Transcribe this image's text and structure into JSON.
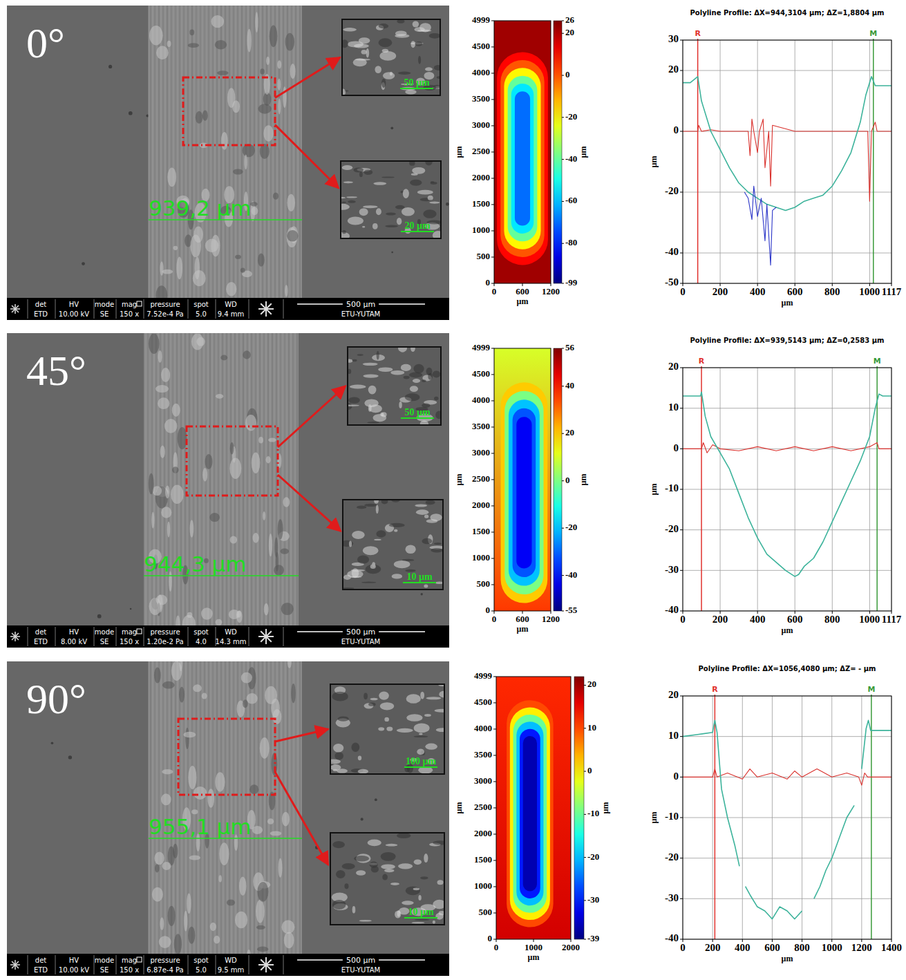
{
  "sem_images": [
    {
      "label": "0°",
      "measure": "939,2 µm",
      "insets": [
        "50 µm",
        "20 µm"
      ],
      "info": {
        "headers": [
          "det",
          "HV",
          "mode",
          "mag",
          "pressure",
          "spot",
          "WD"
        ],
        "values": [
          "ETD",
          "10.00 kV",
          "SE",
          "150 x",
          "7.52e-4 Pa",
          "5.0",
          "9.4 mm"
        ]
      },
      "scale_bar": "500 µm",
      "lab": "ETU-YUTAM"
    },
    {
      "label": "45°",
      "measure": "944,3 µm",
      "insets": [
        "50 µm",
        "10 µm"
      ],
      "info": {
        "headers": [
          "det",
          "HV",
          "mode",
          "mag",
          "pressure",
          "spot",
          "WD"
        ],
        "values": [
          "ETD",
          "8.00 kV",
          "SE",
          "150 x",
          "1.20e-2 Pa",
          "4.0",
          "14.3 mm"
        ]
      },
      "scale_bar": "500 µm",
      "lab": "ETU-YUTAM"
    },
    {
      "label": "90°",
      "measure": "955,1 µm",
      "insets": [
        "100 µm",
        "10 µm"
      ],
      "info": {
        "headers": [
          "det",
          "HV",
          "mode",
          "mag",
          "pressure",
          "spot",
          "WD"
        ],
        "values": [
          "ETD",
          "10.00 kV",
          "SE",
          "150 x",
          "6.87e-4 Pa",
          "5.0",
          "9.5 mm"
        ]
      },
      "scale_bar": "500 µm",
      "lab": "ETU-YUTAM"
    }
  ],
  "chart_data": [
    {
      "type": "heatmap",
      "xlabel": "µm",
      "ylabel": "µm",
      "colorbar_label": "µm",
      "xlim": [
        0,
        1200
      ],
      "xticks": [
        0,
        600,
        1200
      ],
      "ylim": [
        0,
        4999
      ],
      "yticks": [
        0,
        500,
        1000,
        1500,
        2000,
        2500,
        3000,
        3500,
        4000,
        4500,
        4999
      ],
      "color_range": [
        -99,
        26
      ],
      "color_ticks": [
        26,
        20,
        0,
        -20,
        -40,
        -60,
        -80,
        -99
      ],
      "surface": [
        22,
        22
      ],
      "scar": {
        "x": [
          60,
          1140
        ],
        "y": [
          350,
          4400
        ],
        "levels": [
          10,
          0,
          -20,
          -40,
          -55,
          -70
        ]
      }
    },
    {
      "type": "line",
      "title": "Polyline Profile: ΔX=944,3104 µm; ΔZ=1,8804 µm",
      "xlabel": "µm",
      "ylabel": "µm",
      "xlim": [
        0,
        1117
      ],
      "xticks": [
        0,
        200,
        400,
        600,
        800,
        1000,
        1117
      ],
      "ylim": [
        -50,
        30
      ],
      "yticks": [
        -50,
        -40,
        -20,
        0,
        20,
        30
      ],
      "grid": true,
      "cursors": [
        {
          "label": "R",
          "x": 80,
          "color": "#e0302c"
        },
        {
          "label": "M",
          "x": 1020,
          "color": "#3a9a3a"
        }
      ],
      "series": [
        {
          "color": "#3cb39b",
          "x": [
            0,
            40,
            80,
            100,
            150,
            200,
            250,
            300,
            350,
            400,
            450,
            500,
            550,
            600,
            650,
            700,
            750,
            800,
            850,
            900,
            950,
            980,
            1010,
            1030,
            1060,
            1117
          ],
          "values": [
            16,
            16,
            18,
            10,
            0,
            -6,
            -12,
            -17,
            -20,
            -22,
            -24,
            -25,
            -26,
            -25,
            -23,
            -22,
            -21,
            -18,
            -13,
            -7,
            3,
            12,
            18,
            15,
            15,
            15
          ]
        },
        {
          "color": "#2b35c8",
          "x": [
            330,
            350,
            370,
            380,
            400,
            420,
            440,
            450,
            470,
            480,
            500
          ],
          "values": [
            -20,
            -22,
            -29,
            -18,
            -28,
            -22,
            -36,
            -24,
            -44,
            -26,
            -25
          ]
        },
        {
          "color": "#d9302c",
          "x": [
            0,
            80,
            85,
            100,
            150,
            200,
            300,
            350,
            360,
            370,
            380,
            400,
            410,
            430,
            440,
            460,
            470,
            480,
            600,
            800,
            990,
            1000,
            1010,
            1030,
            1040,
            1117
          ],
          "values": [
            0,
            0,
            2,
            0,
            0.5,
            0,
            0,
            0,
            -8,
            4,
            0,
            -7,
            0,
            4,
            -12,
            0,
            -18,
            2,
            0,
            0,
            0,
            -23,
            0,
            3,
            0,
            0
          ]
        }
      ]
    },
    {
      "type": "heatmap",
      "xlabel": "µm",
      "ylabel": "µm",
      "colorbar_label": "µm",
      "xlim": [
        0,
        1200
      ],
      "xticks": [
        0,
        600,
        1200
      ],
      "ylim": [
        0,
        4999
      ],
      "yticks": [
        0,
        500,
        1000,
        1500,
        2000,
        2500,
        3000,
        3500,
        4000,
        4500,
        4999
      ],
      "color_range": [
        -55,
        56
      ],
      "color_ticks": [
        56,
        40,
        20,
        0,
        -20,
        -40,
        -55
      ],
      "surface": [
        10,
        36
      ],
      "scar": {
        "x": [
          140,
          1130
        ],
        "y": [
          150,
          4350
        ],
        "levels": [
          20,
          0,
          -20,
          -32,
          -42
        ]
      }
    },
    {
      "type": "line",
      "title": "Polyline Profile: ΔX=939,5143 µm; ΔZ=0,2583 µm",
      "xlabel": "µm",
      "ylabel": "µm",
      "xlim": [
        0,
        1117
      ],
      "xticks": [
        0,
        200,
        400,
        600,
        800,
        1000,
        1117
      ],
      "ylim": [
        -40,
        20
      ],
      "yticks": [
        -40,
        -30,
        -20,
        -10,
        0,
        10,
        20
      ],
      "grid": true,
      "cursors": [
        {
          "label": "R",
          "x": 100,
          "color": "#e0302c"
        },
        {
          "label": "M",
          "x": 1040,
          "color": "#3a9a3a"
        }
      ],
      "series": [
        {
          "color": "#3cb39b",
          "x": [
            0,
            50,
            95,
            100,
            120,
            150,
            200,
            250,
            300,
            350,
            400,
            450,
            500,
            550,
            600,
            620,
            650,
            700,
            750,
            800,
            850,
            900,
            950,
            1000,
            1030,
            1050,
            1070,
            1117
          ],
          "values": [
            13,
            13,
            13,
            14,
            8,
            3,
            -1,
            -5,
            -11,
            -17,
            -22,
            -26,
            -28,
            -30,
            -31.5,
            -31,
            -29,
            -27,
            -23,
            -18,
            -13,
            -8,
            -3,
            3,
            10,
            13.5,
            13,
            13
          ]
        },
        {
          "color": "#d9302c",
          "x": [
            0,
            100,
            110,
            130,
            160,
            200,
            300,
            400,
            500,
            600,
            700,
            800,
            900,
            1000,
            1040,
            1050,
            1117
          ],
          "values": [
            0,
            0,
            1.5,
            -1,
            1,
            0,
            -0.5,
            0.5,
            -0.5,
            0.5,
            -0.5,
            0.5,
            -0.5,
            0.5,
            1.5,
            0,
            0
          ]
        }
      ]
    },
    {
      "type": "heatmap",
      "xlabel": "µm",
      "ylabel": "µm",
      "colorbar_label": "µm",
      "xlim": [
        0,
        2000
      ],
      "xticks": [
        0,
        1000,
        2000
      ],
      "ylim": [
        0,
        4999
      ],
      "yticks": [
        0,
        500,
        1000,
        1500,
        2000,
        2500,
        3000,
        3500,
        4000,
        4500,
        4999
      ],
      "color_range": [
        -39,
        22
      ],
      "color_ticks": [
        20,
        10,
        0,
        -10,
        -20,
        -30,
        -39
      ],
      "surface": [
        12,
        17
      ],
      "scar": {
        "x": [
          280,
          1530
        ],
        "y": [
          230,
          4550
        ],
        "levels": [
          10,
          0,
          -10,
          -20,
          -30,
          -36
        ]
      }
    },
    {
      "type": "line",
      "title": "Polyline Profile: ΔX=1056,4080 µm; ΔZ= - µm",
      "xlabel": "µm",
      "ylabel": "µm",
      "xlim": [
        0,
        1400
      ],
      "xticks": [
        0,
        200,
        400,
        600,
        800,
        1000,
        1200,
        1400
      ],
      "ylim": [
        -40,
        20
      ],
      "yticks": [
        -40,
        -30,
        -20,
        -10,
        0,
        10,
        20
      ],
      "grid": true,
      "cursors": [
        {
          "label": "R",
          "x": 215,
          "color": "#e0302c"
        },
        {
          "label": "M",
          "x": 1265,
          "color": "#3a9a3a"
        }
      ],
      "series": [
        {
          "color": "#3cb39b",
          "x": [
            0,
            100,
            200,
            215,
            230,
            260,
            300,
            350,
            380,
            400,
            420,
            450,
            500,
            550,
            600,
            650,
            700,
            750,
            800,
            830,
            880,
            920,
            960,
            1000,
            1050,
            1100,
            1150,
            1170,
            1200,
            1230,
            1245,
            1260,
            1300,
            1400
          ],
          "values": [
            10,
            10.5,
            11,
            14,
            11,
            -3,
            -10,
            -17,
            -22,
            null,
            -27,
            -29,
            -32,
            -33,
            -35,
            -32,
            -33,
            -35,
            -33,
            null,
            -30,
            -27,
            -23,
            -20,
            -15,
            -10,
            -7,
            null,
            2,
            12,
            14,
            11.5,
            11.5,
            11.5
          ]
        },
        {
          "color": "#d9302c",
          "x": [
            0,
            200,
            215,
            230,
            300,
            400,
            450,
            500,
            600,
            700,
            750,
            800,
            900,
            1000,
            1100,
            1180,
            1200,
            1220,
            1240,
            1300,
            1400
          ],
          "values": [
            0,
            0,
            2,
            0,
            1,
            -0.5,
            2,
            0,
            1,
            -0.5,
            1.5,
            0,
            2,
            0,
            1,
            0,
            -2,
            1,
            0,
            0,
            0
          ]
        }
      ]
    }
  ]
}
